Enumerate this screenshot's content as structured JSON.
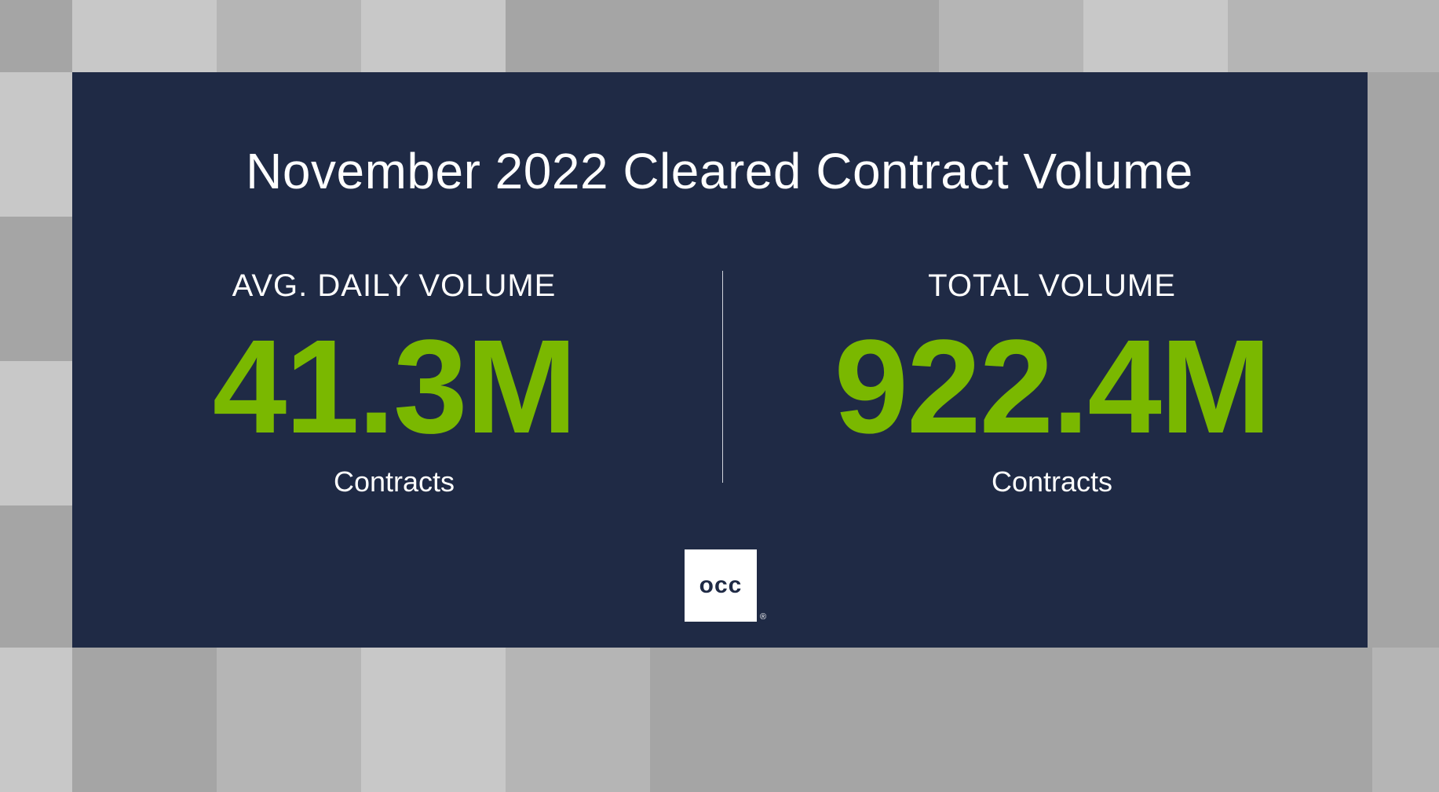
{
  "title": "November 2022 Cleared Contract Volume",
  "stats": [
    {
      "label": "AVG. DAILY VOLUME",
      "value": "41.3M",
      "unit": "Contracts"
    },
    {
      "label": "TOTAL VOLUME",
      "value": "922.4M",
      "unit": "Contracts"
    }
  ],
  "logo": {
    "text": "occ",
    "registered": "®"
  },
  "colors": {
    "panel": "#1f2a45",
    "accent": "#7ab800",
    "text": "#ffffff",
    "tile_light": "#c8c8c8",
    "tile_mid": "#b5b5b5",
    "tile_dark": "#a5a5a5"
  }
}
